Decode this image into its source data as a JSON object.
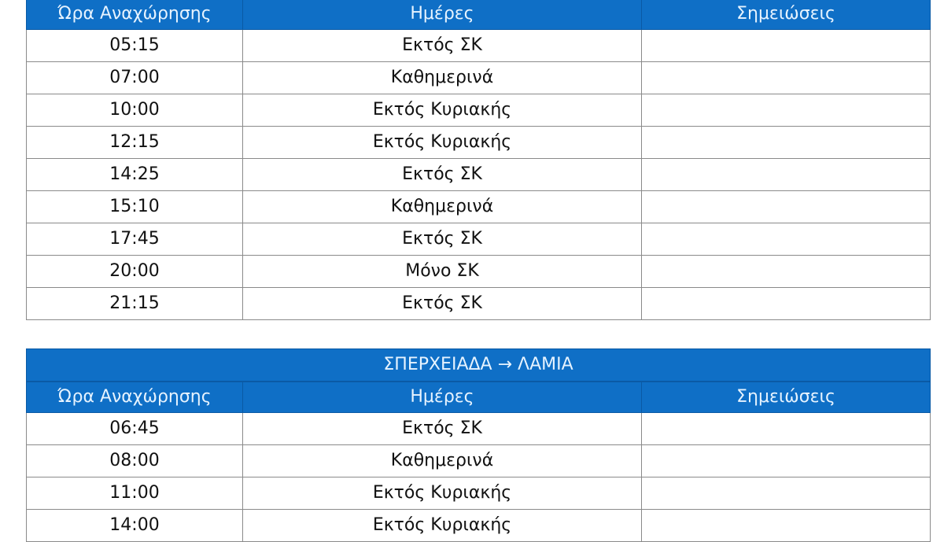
{
  "theme": {
    "header_bg": "#0f6fc6",
    "header_text": "#e6f3ff"
  },
  "tables": [
    {
      "title": "",
      "headers": [
        "Ώρα Αναχώρησης",
        "Ημέρες",
        "Σημειώσεις"
      ],
      "rows": [
        [
          "05:15",
          "Εκτός ΣΚ",
          ""
        ],
        [
          "07:00",
          "Καθημερινά",
          ""
        ],
        [
          "10:00",
          "Εκτός Κυριακής",
          ""
        ],
        [
          "12:15",
          "Εκτός Κυριακής",
          ""
        ],
        [
          "14:25",
          "Εκτός ΣΚ",
          ""
        ],
        [
          "15:10",
          "Καθημερινά",
          ""
        ],
        [
          "17:45",
          "Εκτός ΣΚ",
          ""
        ],
        [
          "20:00",
          "Μόνο ΣΚ",
          ""
        ],
        [
          "21:15",
          "Εκτός ΣΚ",
          ""
        ]
      ]
    },
    {
      "title": "ΣΠΕΡΧΕΙΑΔΑ → ΛΑΜΙΑ",
      "headers": [
        "Ώρα Αναχώρησης",
        "Ημέρες",
        "Σημειώσεις"
      ],
      "rows": [
        [
          "06:45",
          "Εκτός ΣΚ",
          ""
        ],
        [
          "08:00",
          "Καθημερινά",
          ""
        ],
        [
          "11:00",
          "Εκτός Κυριακής",
          ""
        ],
        [
          "14:00",
          "Εκτός Κυριακής",
          ""
        ]
      ]
    }
  ]
}
